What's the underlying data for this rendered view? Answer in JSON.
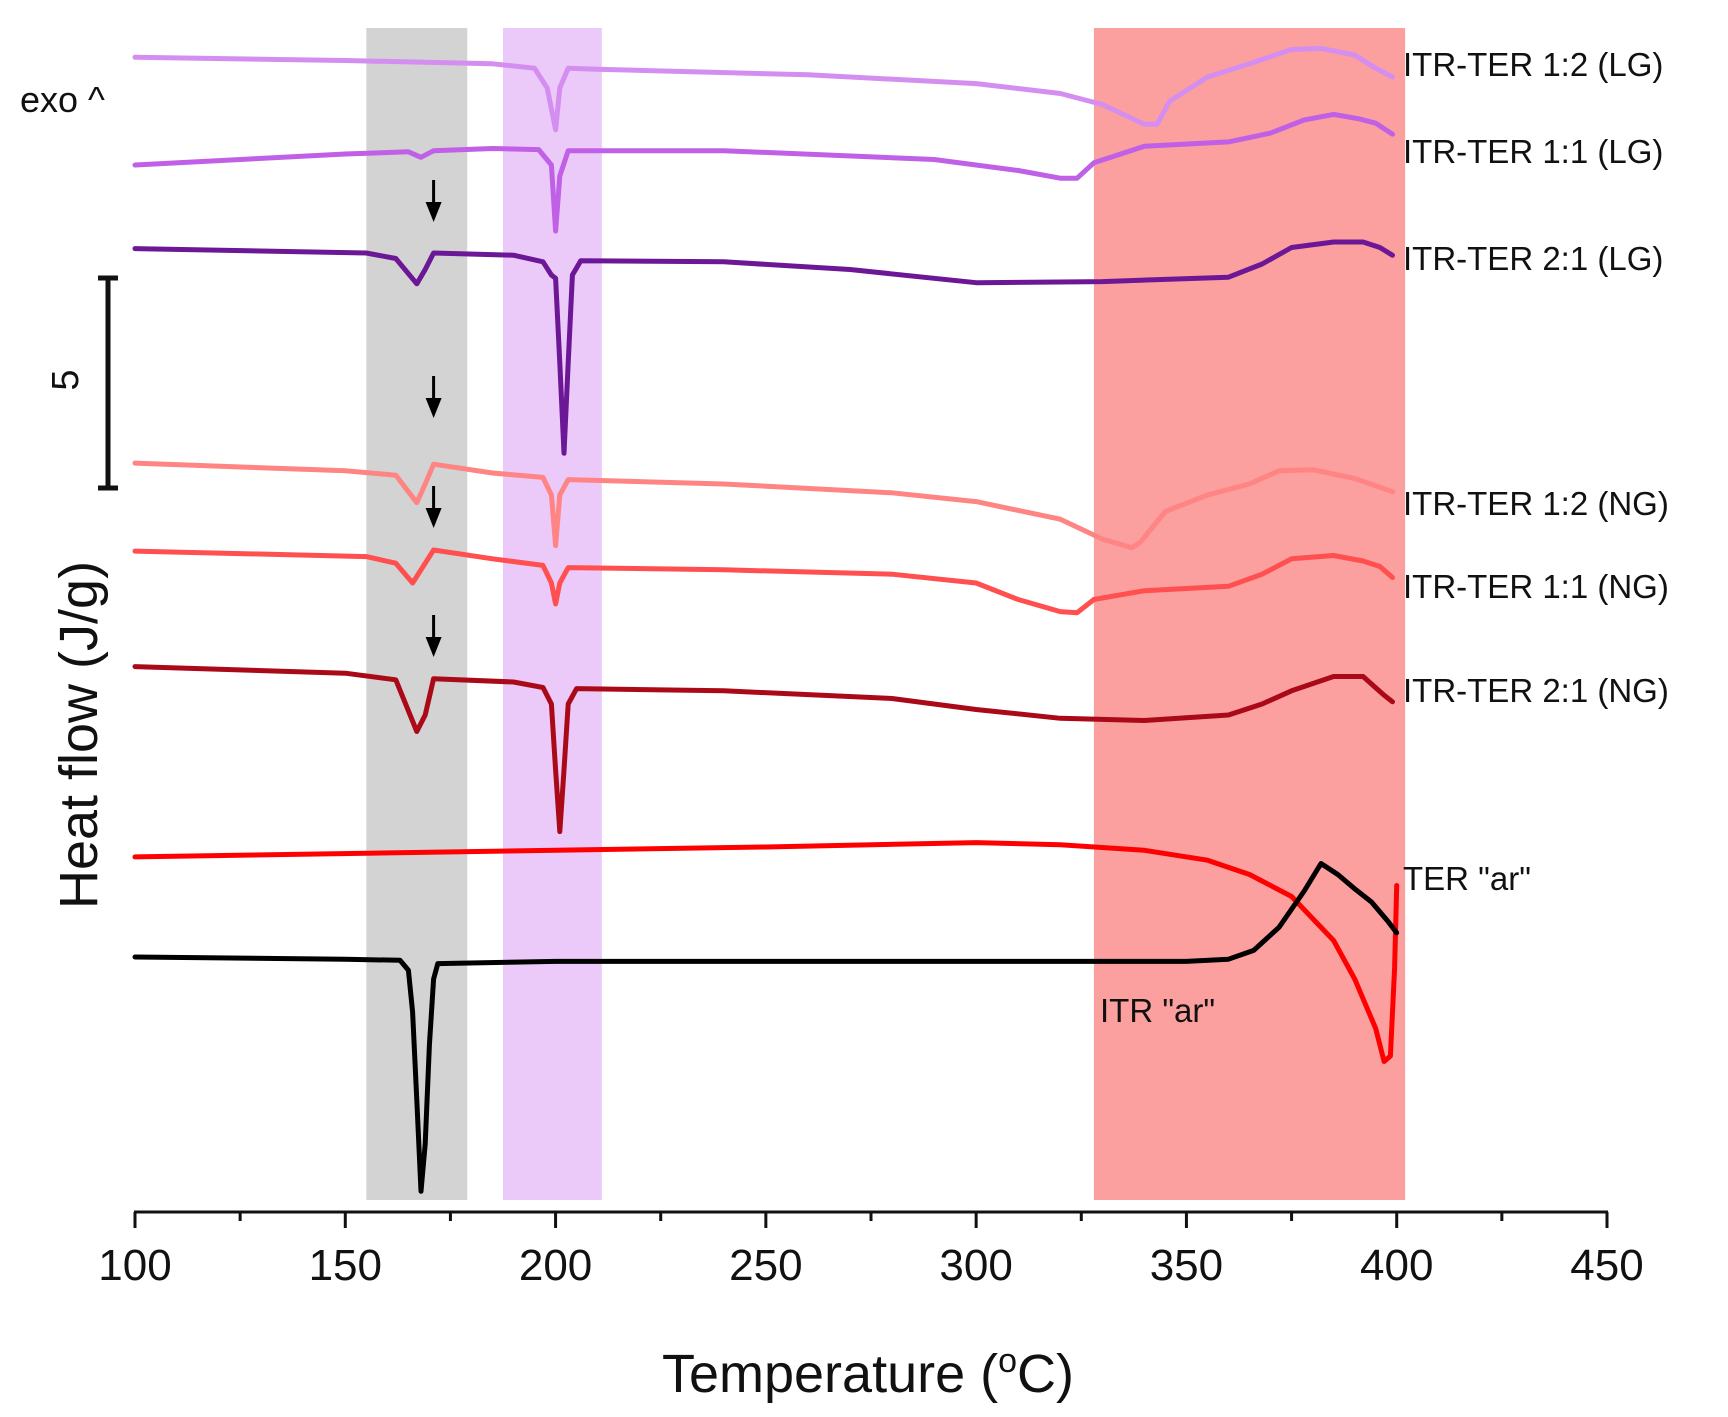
{
  "chart_data": {
    "type": "line",
    "xlabel": "Temperature (",
    "xlabel_sup": "o",
    "xlabel_unit": "C)",
    "ylabel": "Heat flow (J/g)",
    "exo_label": "exo ^",
    "scale_bar_label": "5",
    "scale_bar_value": 5,
    "xlim": [
      100,
      450
    ],
    "x_ticks": [
      100,
      150,
      200,
      250,
      300,
      350,
      400,
      450
    ],
    "x_tick_labels": [
      "100",
      "150",
      "200",
      "250",
      "300",
      "350",
      "400",
      "450"
    ],
    "shaded_regions": [
      {
        "name": "grey-band",
        "x": [
          155,
          179
        ],
        "color": "#d3d3d3"
      },
      {
        "name": "violet-band",
        "x": [
          187.5,
          211
        ],
        "color": "#ebc9f9"
      },
      {
        "name": "red-band",
        "x": [
          328,
          402
        ],
        "color": "#fc9f9f"
      }
    ],
    "arrows_at_x": [
      171,
      171,
      171,
      171
    ],
    "series": [
      {
        "name": "ITR-TER 1:2 (LG)",
        "label": "ITR-TER 1:2 (LG)",
        "color": "#d48ef0",
        "points": [
          [
            100,
            52
          ],
          [
            150,
            55
          ],
          [
            185,
            58
          ],
          [
            195,
            62
          ],
          [
            198,
            80
          ],
          [
            200,
            118
          ],
          [
            201,
            80
          ],
          [
            203,
            62
          ],
          [
            210,
            63
          ],
          [
            260,
            68
          ],
          [
            300,
            76
          ],
          [
            320,
            85
          ],
          [
            330,
            95
          ],
          [
            340,
            113
          ],
          [
            343,
            113
          ],
          [
            346,
            92
          ],
          [
            355,
            70
          ],
          [
            365,
            58
          ],
          [
            375,
            45
          ],
          [
            382,
            44
          ],
          [
            390,
            50
          ],
          [
            395,
            62
          ],
          [
            399,
            70
          ]
        ]
      },
      {
        "name": "ITR-TER 1:1 (LG)",
        "label": "ITR-TER 1:1 (LG)",
        "color": "#bf60e6",
        "points": [
          [
            100,
            150
          ],
          [
            150,
            140
          ],
          [
            165,
            138
          ],
          [
            168,
            143
          ],
          [
            171,
            137
          ],
          [
            185,
            135
          ],
          [
            196,
            136
          ],
          [
            199,
            150
          ],
          [
            200,
            210
          ],
          [
            201,
            160
          ],
          [
            203,
            137
          ],
          [
            240,
            137
          ],
          [
            290,
            145
          ],
          [
            310,
            155
          ],
          [
            320,
            162
          ],
          [
            324,
            162
          ],
          [
            328,
            148
          ],
          [
            340,
            133
          ],
          [
            360,
            129
          ],
          [
            370,
            121
          ],
          [
            378,
            109
          ],
          [
            385,
            104
          ],
          [
            391,
            108
          ],
          [
            395,
            112
          ],
          [
            399,
            122
          ]
        ]
      },
      {
        "name": "ITR-TER 2:1 (LG)",
        "label": "ITR-TER 2:1 (LG)",
        "color": "#6b1796",
        "points": [
          [
            100,
            226
          ],
          [
            155,
            230
          ],
          [
            162,
            235
          ],
          [
            167,
            258
          ],
          [
            169,
            245
          ],
          [
            171,
            230
          ],
          [
            190,
            232
          ],
          [
            197,
            238
          ],
          [
            199,
            250
          ],
          [
            200,
            253
          ],
          [
            201,
            330
          ],
          [
            202,
            412
          ],
          [
            203,
            330
          ],
          [
            204,
            250
          ],
          [
            206,
            237
          ],
          [
            240,
            238
          ],
          [
            270,
            245
          ],
          [
            300,
            257
          ],
          [
            330,
            256
          ],
          [
            360,
            252
          ],
          [
            368,
            240
          ],
          [
            375,
            225
          ],
          [
            385,
            220
          ],
          [
            392,
            220
          ],
          [
            396,
            225
          ],
          [
            399,
            232
          ]
        ]
      },
      {
        "name": "ITR-TER 1:2 (NG)",
        "label": "ITR-TER 1:2 (NG)",
        "color": "#ff8484",
        "points": [
          [
            100,
            421
          ],
          [
            150,
            428
          ],
          [
            162,
            432
          ],
          [
            167,
            457
          ],
          [
            169,
            440
          ],
          [
            171,
            422
          ],
          [
            185,
            430
          ],
          [
            197,
            434
          ],
          [
            199,
            450
          ],
          [
            200,
            496
          ],
          [
            201,
            450
          ],
          [
            203,
            436
          ],
          [
            240,
            440
          ],
          [
            280,
            448
          ],
          [
            300,
            456
          ],
          [
            320,
            472
          ],
          [
            330,
            490
          ],
          [
            337,
            498
          ],
          [
            339,
            493
          ],
          [
            345,
            465
          ],
          [
            355,
            450
          ],
          [
            365,
            440
          ],
          [
            372,
            428
          ],
          [
            380,
            427
          ],
          [
            390,
            435
          ],
          [
            399,
            447
          ]
        ]
      },
      {
        "name": "ITR-TER 1:1 (NG)",
        "label": "ITR-TER 1:1 (NG)",
        "color": "#ff4f4f",
        "points": [
          [
            100,
            501
          ],
          [
            155,
            506
          ],
          [
            162,
            512
          ],
          [
            166,
            530
          ],
          [
            168,
            518
          ],
          [
            171,
            500
          ],
          [
            185,
            508
          ],
          [
            197,
            514
          ],
          [
            199,
            530
          ],
          [
            200,
            549
          ],
          [
            201,
            530
          ],
          [
            203,
            516
          ],
          [
            240,
            518
          ],
          [
            280,
            522
          ],
          [
            300,
            530
          ],
          [
            310,
            545
          ],
          [
            320,
            556
          ],
          [
            324,
            557
          ],
          [
            328,
            545
          ],
          [
            340,
            537
          ],
          [
            360,
            533
          ],
          [
            368,
            522
          ],
          [
            375,
            508
          ],
          [
            385,
            505
          ],
          [
            392,
            510
          ],
          [
            396,
            515
          ],
          [
            399,
            525
          ]
        ]
      },
      {
        "name": "ITR-TER 2:1 (NG)",
        "label": "ITR-TER 2:1 (NG)",
        "color": "#aa0a18",
        "points": [
          [
            100,
            606
          ],
          [
            150,
            612
          ],
          [
            162,
            618
          ],
          [
            167,
            665
          ],
          [
            169,
            650
          ],
          [
            171,
            617
          ],
          [
            190,
            620
          ],
          [
            197,
            625
          ],
          [
            199,
            640
          ],
          [
            200,
            700
          ],
          [
            201,
            756
          ],
          [
            202,
            700
          ],
          [
            203,
            640
          ],
          [
            205,
            626
          ],
          [
            240,
            628
          ],
          [
            280,
            635
          ],
          [
            300,
            645
          ],
          [
            320,
            653
          ],
          [
            340,
            655
          ],
          [
            360,
            650
          ],
          [
            368,
            640
          ],
          [
            375,
            628
          ],
          [
            385,
            615
          ],
          [
            392,
            615
          ],
          [
            397,
            632
          ],
          [
            399,
            638
          ]
        ]
      },
      {
        "name": "TER \"ar\"",
        "label": "TER \"ar\"",
        "color": "#ff0000",
        "points": [
          [
            100,
            779
          ],
          [
            200,
            773
          ],
          [
            250,
            770
          ],
          [
            300,
            766
          ],
          [
            320,
            768
          ],
          [
            340,
            773
          ],
          [
            355,
            782
          ],
          [
            365,
            795
          ],
          [
            375,
            815
          ],
          [
            385,
            855
          ],
          [
            390,
            890
          ],
          [
            395,
            935
          ],
          [
            397,
            965
          ],
          [
            398.5,
            960
          ],
          [
            399.5,
            880
          ],
          [
            400,
            805
          ]
        ]
      },
      {
        "name": "ITR \"ar\"",
        "label": "ITR \"ar\"",
        "color": "#000000",
        "points": [
          [
            100,
            870
          ],
          [
            150,
            872
          ],
          [
            163,
            873
          ],
          [
            165,
            882
          ],
          [
            166,
            920
          ],
          [
            167,
            1000
          ],
          [
            168,
            1083
          ],
          [
            169,
            1040
          ],
          [
            170,
            950
          ],
          [
            171,
            890
          ],
          [
            172,
            876
          ],
          [
            200,
            874
          ],
          [
            250,
            874
          ],
          [
            300,
            874
          ],
          [
            350,
            874
          ],
          [
            360,
            872
          ],
          [
            366,
            864
          ],
          [
            372,
            843
          ],
          [
            378,
            810
          ],
          [
            382,
            785
          ],
          [
            386,
            795
          ],
          [
            390,
            808
          ],
          [
            394,
            820
          ],
          [
            398,
            838
          ],
          [
            400,
            848
          ]
        ]
      }
    ]
  }
}
